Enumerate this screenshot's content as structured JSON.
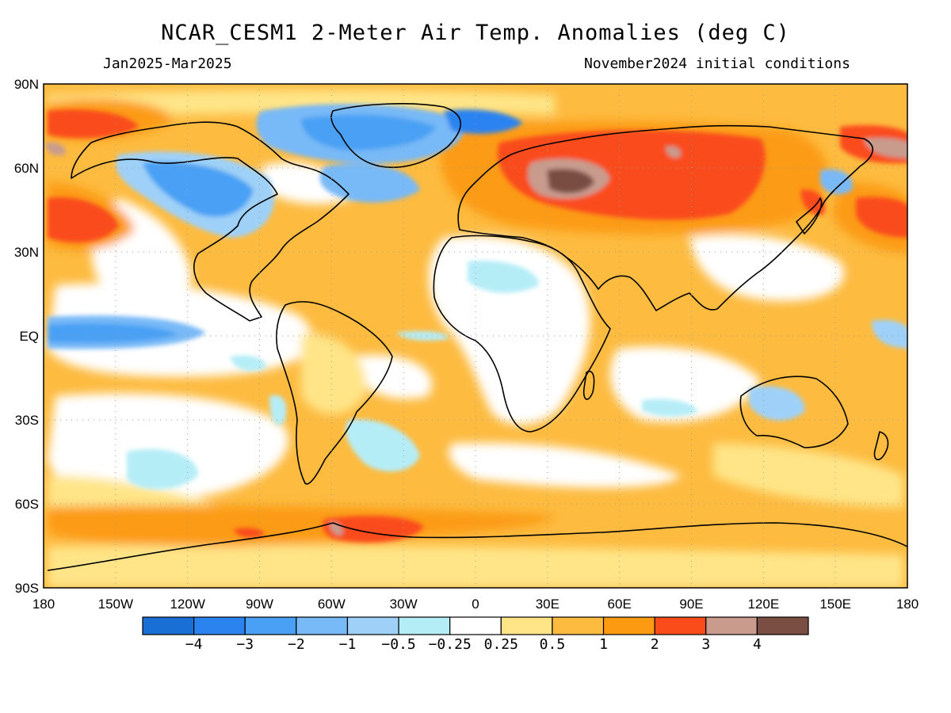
{
  "header": {
    "title": "NCAR_CESM1 2-Meter Air Temp. Anomalies (deg C)",
    "period": "Jan2025-Mar2025",
    "init": "November2024 initial conditions"
  },
  "axes": {
    "lat_labels": [
      "90N",
      "60N",
      "30N",
      "EQ",
      "30S",
      "60S",
      "90S"
    ],
    "lon_labels": [
      "180",
      "150W",
      "120W",
      "90W",
      "60W",
      "30W",
      "0",
      "30E",
      "60E",
      "90E",
      "120E",
      "150E",
      "180"
    ]
  },
  "legend": {
    "colors": [
      "#1a6fd4",
      "#2b83f0",
      "#4aa0f4",
      "#78b9f7",
      "#9fd1f8",
      "#b5edf7",
      "#ffffff",
      "#ffe588",
      "#fdbb40",
      "#fc9b12",
      "#fa4c1b",
      "#c89b8d",
      "#7a4e42"
    ],
    "tick_labels": [
      "-4",
      "-3",
      "-2",
      "-1",
      "-0.5",
      "-0.25",
      "0.25",
      "0.5",
      "1",
      "2",
      "3",
      "4"
    ]
  }
}
